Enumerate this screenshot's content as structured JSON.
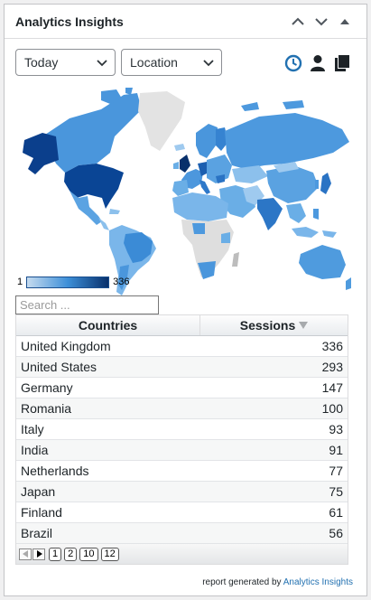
{
  "widget": {
    "title": "Analytics Insights"
  },
  "controls": {
    "period": "Today",
    "report_type": "Location"
  },
  "icons": {
    "realtime": "clock-icon",
    "audience": "user-icon",
    "copy": "copy-icon"
  },
  "colors": {
    "accent": "#2271b1",
    "map_low": "#c6dbef",
    "map_high": "#08306b",
    "no_data": "#cccccc"
  },
  "legend": {
    "min": "1",
    "max": "336"
  },
  "search": {
    "placeholder": "Search ..."
  },
  "table": {
    "headers": {
      "country": "Countries",
      "sessions": "Sessions"
    },
    "rows": [
      {
        "country": "United Kingdom",
        "sessions": "336"
      },
      {
        "country": "United States",
        "sessions": "293"
      },
      {
        "country": "Germany",
        "sessions": "147"
      },
      {
        "country": "Romania",
        "sessions": "100"
      },
      {
        "country": "Italy",
        "sessions": "93"
      },
      {
        "country": "India",
        "sessions": "91"
      },
      {
        "country": "Netherlands",
        "sessions": "77"
      },
      {
        "country": "Japan",
        "sessions": "75"
      },
      {
        "country": "Finland",
        "sessions": "61"
      },
      {
        "country": "Brazil",
        "sessions": "56"
      }
    ]
  },
  "pagination": {
    "pages": [
      "1",
      "2",
      "10",
      "12"
    ],
    "current": "1"
  },
  "footer": {
    "text": "report generated by",
    "link": "Analytics Insights"
  }
}
